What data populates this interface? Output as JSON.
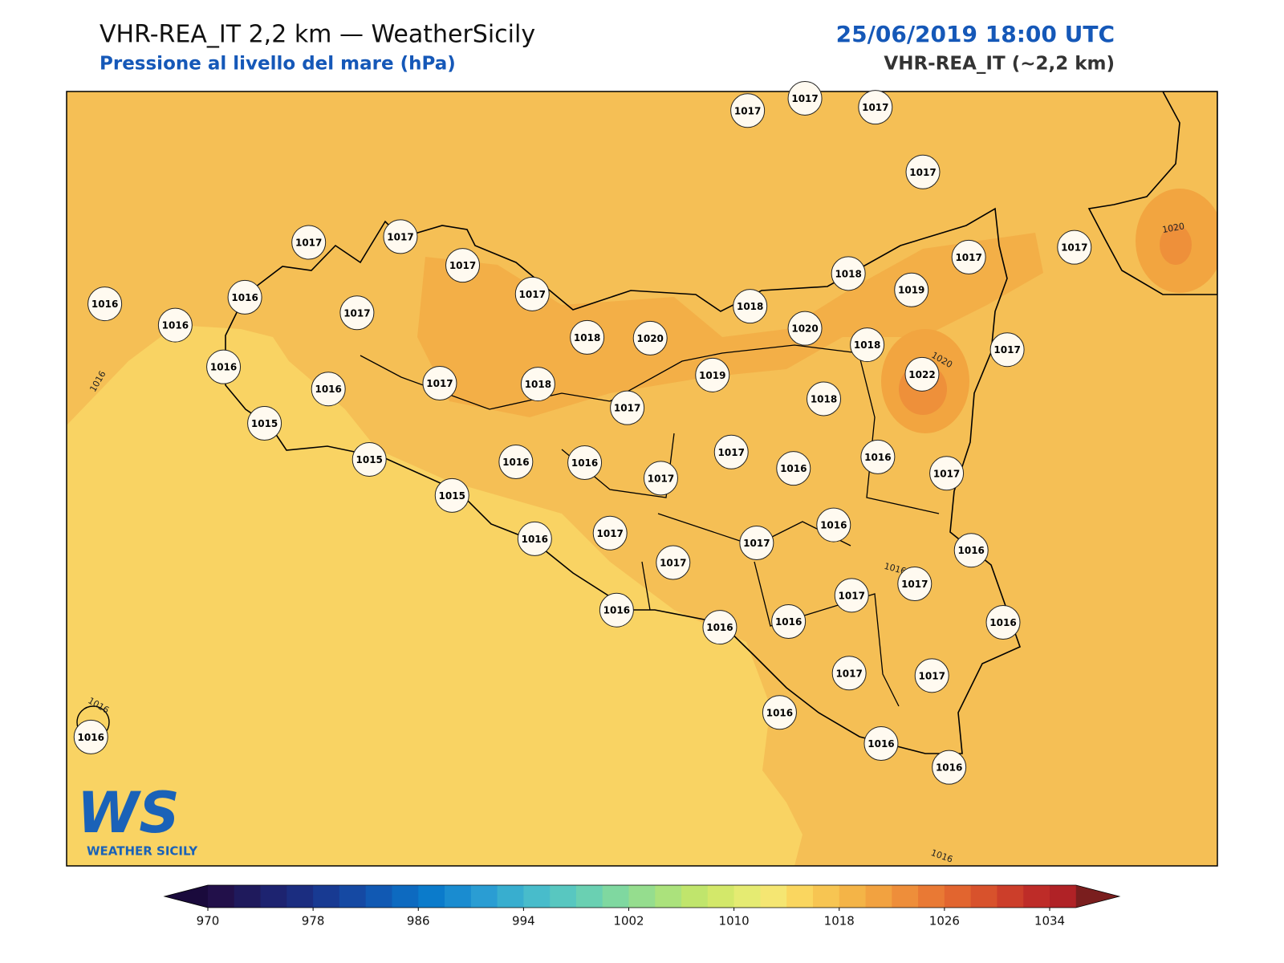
{
  "header": {
    "title": "VHR-REA_IT 2,2 km — WeatherSicily",
    "subtitle": "Pressione al livello del mare (hPa)",
    "datetime": "25/06/2019 18:00 UTC",
    "model": "VHR-REA_IT (~2,2 km)"
  },
  "map": {
    "stations": [
      1017,
      1017,
      1017,
      1017,
      1017,
      1017,
      1017,
      1017,
      1016,
      1016,
      1016,
      1017,
      1018,
      1017,
      1017,
      1019,
      1018,
      1020,
      1018,
      1020,
      1018,
      1017,
      1016,
      1019,
      1022,
      1017,
      1018,
      1016,
      1018,
      1017,
      1015,
      1017,
      1015,
      1016,
      1016,
      1016,
      1016,
      1017,
      1017,
      1015,
      1016,
      1016,
      1017,
      1017,
      1016,
      1017,
      1017,
      1017,
      1016,
      1016,
      1016,
      1016,
      1017,
      1017,
      1016,
      1016,
      1016,
      1016
    ],
    "contour_labels": [
      "1016",
      "1020",
      "1020",
      "1016",
      "1016",
      "1016"
    ]
  },
  "colorbar": {
    "lim": [
      970,
      1034
    ],
    "ticks": [
      970,
      978,
      986,
      994,
      1002,
      1010,
      1018,
      1026,
      1034
    ],
    "colors": [
      "#22104a",
      "#1f1a5c",
      "#1d2370",
      "#1b2d80",
      "#183a92",
      "#1549a3",
      "#1159b3",
      "#0d6ac0",
      "#0b7bcb",
      "#1a8cd0",
      "#2a9dd3",
      "#38aecf",
      "#48bccb",
      "#58c7c0",
      "#6ad0b2",
      "#7fd8a0",
      "#95dd8e",
      "#abe27c",
      "#c0e56c",
      "#d3e86a",
      "#e5eb72",
      "#f5e672",
      "#fad65f",
      "#f7c552",
      "#f4b447",
      "#f2a240",
      "#ee8e3a",
      "#e97934",
      "#e2652f",
      "#d8522c",
      "#cc3e2a",
      "#be2c28",
      "#b02226"
    ],
    "under": "#1a0a3c",
    "over": "#7a1e1e"
  },
  "logo": {
    "initials": "WS",
    "name": "WEATHER SICILY"
  }
}
